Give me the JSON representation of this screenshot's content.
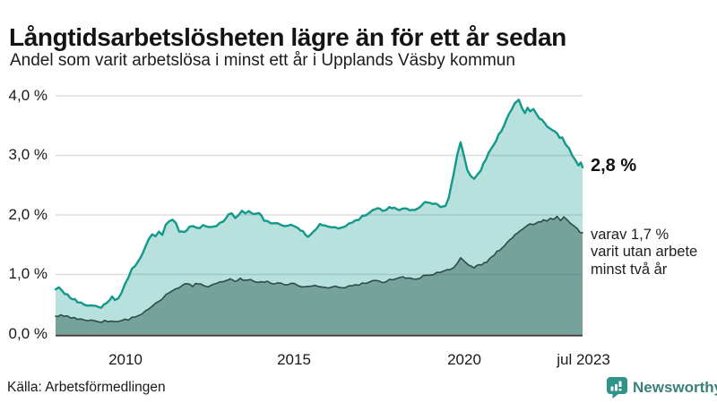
{
  "chart_data": {
    "type": "area",
    "title": "Långtidsarbetslösheten lägre än för ett år sedan",
    "subtitle": "Andel som varit arbetslösa i minst ett år i Upplands Väsby kommun",
    "source": "Källa: Arbetsförmedlingen",
    "unit": "%",
    "xlim": [
      2007.95,
      2023.5
    ],
    "ylim": [
      0,
      4
    ],
    "grid": "horizontal",
    "legend_position": "none",
    "ytick_values": [
      4,
      3,
      2,
      1,
      0
    ],
    "ytick_labels": [
      "4,0 %",
      "3,0 %",
      "2,0 %",
      "1,0 %",
      "0,0 %"
    ],
    "xtick_values": [
      2010,
      2015,
      2020,
      2023.5
    ],
    "xtick_labels": [
      "2010",
      "2015",
      "2020",
      "jul 2023"
    ],
    "end_label": "2,8 %",
    "annotation_lines": [
      "varav 1,7 %",
      "varit utan arbete",
      "minst två år"
    ],
    "series": [
      {
        "name": "Andel arbetslösa minst ett år",
        "end_value": 2.8,
        "color_line": "#13998b",
        "color_fill": "#13998b",
        "fill_opacity": 0.3,
        "line_width": 2.4,
        "points": [
          [
            2007.95,
            0.75
          ],
          [
            2008.05,
            0.77
          ],
          [
            2008.15,
            0.72
          ],
          [
            2008.3,
            0.65
          ],
          [
            2008.45,
            0.6
          ],
          [
            2008.6,
            0.55
          ],
          [
            2008.8,
            0.5
          ],
          [
            2009.0,
            0.47
          ],
          [
            2009.15,
            0.48
          ],
          [
            2009.3,
            0.46
          ],
          [
            2009.45,
            0.5
          ],
          [
            2009.55,
            0.57
          ],
          [
            2009.62,
            0.63
          ],
          [
            2009.7,
            0.57
          ],
          [
            2009.8,
            0.61
          ],
          [
            2009.9,
            0.7
          ],
          [
            2010.0,
            0.83
          ],
          [
            2010.1,
            0.97
          ],
          [
            2010.2,
            1.08
          ],
          [
            2010.3,
            1.15
          ],
          [
            2010.45,
            1.28
          ],
          [
            2010.6,
            1.45
          ],
          [
            2010.7,
            1.58
          ],
          [
            2010.8,
            1.66
          ],
          [
            2010.9,
            1.62
          ],
          [
            2011.0,
            1.72
          ],
          [
            2011.1,
            1.68
          ],
          [
            2011.2,
            1.82
          ],
          [
            2011.3,
            1.9
          ],
          [
            2011.4,
            1.93
          ],
          [
            2011.5,
            1.88
          ],
          [
            2011.6,
            1.74
          ],
          [
            2011.75,
            1.7
          ],
          [
            2011.9,
            1.8
          ],
          [
            2012.0,
            1.83
          ],
          [
            2012.1,
            1.77
          ],
          [
            2012.3,
            1.83
          ],
          [
            2012.5,
            1.8
          ],
          [
            2012.7,
            1.82
          ],
          [
            2012.9,
            1.9
          ],
          [
            2013.05,
            2.0
          ],
          [
            2013.15,
            2.03
          ],
          [
            2013.25,
            1.97
          ],
          [
            2013.45,
            2.06
          ],
          [
            2013.55,
            2.02
          ],
          [
            2013.65,
            2.07
          ],
          [
            2013.8,
            2.03
          ],
          [
            2013.95,
            2.05
          ],
          [
            2014.1,
            1.91
          ],
          [
            2014.3,
            1.87
          ],
          [
            2014.5,
            1.85
          ],
          [
            2014.7,
            1.83
          ],
          [
            2014.9,
            1.82
          ],
          [
            2015.1,
            1.8
          ],
          [
            2015.25,
            1.72
          ],
          [
            2015.4,
            1.62
          ],
          [
            2015.55,
            1.72
          ],
          [
            2015.75,
            1.83
          ],
          [
            2015.9,
            1.82
          ],
          [
            2016.1,
            1.78
          ],
          [
            2016.3,
            1.77
          ],
          [
            2016.5,
            1.82
          ],
          [
            2016.7,
            1.87
          ],
          [
            2016.9,
            1.93
          ],
          [
            2017.1,
            2.0
          ],
          [
            2017.3,
            2.06
          ],
          [
            2017.45,
            2.1
          ],
          [
            2017.6,
            2.08
          ],
          [
            2017.8,
            2.12
          ],
          [
            2017.95,
            2.14
          ],
          [
            2018.1,
            2.08
          ],
          [
            2018.25,
            2.12
          ],
          [
            2018.4,
            2.06
          ],
          [
            2018.55,
            2.1
          ],
          [
            2018.7,
            2.15
          ],
          [
            2018.85,
            2.2
          ],
          [
            2019.0,
            2.22
          ],
          [
            2019.15,
            2.18
          ],
          [
            2019.3,
            2.14
          ],
          [
            2019.45,
            2.15
          ],
          [
            2019.55,
            2.3
          ],
          [
            2019.7,
            2.7
          ],
          [
            2019.8,
            3.0
          ],
          [
            2019.9,
            3.22
          ],
          [
            2020.0,
            2.98
          ],
          [
            2020.1,
            2.75
          ],
          [
            2020.2,
            2.65
          ],
          [
            2020.3,
            2.62
          ],
          [
            2020.4,
            2.66
          ],
          [
            2020.5,
            2.76
          ],
          [
            2020.65,
            2.95
          ],
          [
            2020.8,
            3.1
          ],
          [
            2020.95,
            3.25
          ],
          [
            2021.1,
            3.42
          ],
          [
            2021.25,
            3.6
          ],
          [
            2021.4,
            3.78
          ],
          [
            2021.5,
            3.88
          ],
          [
            2021.62,
            3.95
          ],
          [
            2021.72,
            3.8
          ],
          [
            2021.8,
            3.72
          ],
          [
            2021.88,
            3.8
          ],
          [
            2021.95,
            3.74
          ],
          [
            2022.05,
            3.77
          ],
          [
            2022.15,
            3.68
          ],
          [
            2022.3,
            3.6
          ],
          [
            2022.45,
            3.48
          ],
          [
            2022.6,
            3.42
          ],
          [
            2022.75,
            3.35
          ],
          [
            2022.9,
            3.28
          ],
          [
            2023.0,
            3.18
          ],
          [
            2023.1,
            3.1
          ],
          [
            2023.2,
            3.0
          ],
          [
            2023.3,
            2.9
          ],
          [
            2023.38,
            2.85
          ],
          [
            2023.45,
            2.9
          ],
          [
            2023.5,
            2.8
          ]
        ]
      },
      {
        "name": "Varav utan arbete minst två år",
        "end_value": 1.7,
        "color_line": "#2d4c48",
        "color_fill": "#2d5b55",
        "fill_opacity": 0.47,
        "line_width": 1.6,
        "points": [
          [
            2007.95,
            0.3
          ],
          [
            2008.1,
            0.31
          ],
          [
            2008.3,
            0.29
          ],
          [
            2008.5,
            0.27
          ],
          [
            2008.7,
            0.25
          ],
          [
            2008.9,
            0.23
          ],
          [
            2009.1,
            0.22
          ],
          [
            2009.3,
            0.21
          ],
          [
            2009.5,
            0.22
          ],
          [
            2009.7,
            0.21
          ],
          [
            2009.9,
            0.23
          ],
          [
            2010.1,
            0.25
          ],
          [
            2010.3,
            0.29
          ],
          [
            2010.5,
            0.34
          ],
          [
            2010.7,
            0.41
          ],
          [
            2010.9,
            0.5
          ],
          [
            2011.1,
            0.6
          ],
          [
            2011.3,
            0.7
          ],
          [
            2011.5,
            0.77
          ],
          [
            2011.7,
            0.82
          ],
          [
            2011.85,
            0.85
          ],
          [
            2012.0,
            0.81
          ],
          [
            2012.15,
            0.86
          ],
          [
            2012.3,
            0.82
          ],
          [
            2012.45,
            0.8
          ],
          [
            2012.6,
            0.84
          ],
          [
            2012.8,
            0.87
          ],
          [
            2012.95,
            0.9
          ],
          [
            2013.1,
            0.92
          ],
          [
            2013.25,
            0.9
          ],
          [
            2013.4,
            0.93
          ],
          [
            2013.55,
            0.9
          ],
          [
            2013.7,
            0.92
          ],
          [
            2013.85,
            0.89
          ],
          [
            2014.0,
            0.87
          ],
          [
            2014.2,
            0.88
          ],
          [
            2014.4,
            0.84
          ],
          [
            2014.6,
            0.86
          ],
          [
            2014.8,
            0.83
          ],
          [
            2015.0,
            0.85
          ],
          [
            2015.2,
            0.81
          ],
          [
            2015.4,
            0.79
          ],
          [
            2015.6,
            0.82
          ],
          [
            2015.8,
            0.79
          ],
          [
            2016.0,
            0.77
          ],
          [
            2016.2,
            0.79
          ],
          [
            2016.4,
            0.78
          ],
          [
            2016.6,
            0.8
          ],
          [
            2016.8,
            0.82
          ],
          [
            2017.0,
            0.84
          ],
          [
            2017.2,
            0.87
          ],
          [
            2017.4,
            0.89
          ],
          [
            2017.6,
            0.87
          ],
          [
            2017.8,
            0.91
          ],
          [
            2018.0,
            0.94
          ],
          [
            2018.2,
            0.96
          ],
          [
            2018.35,
            0.93
          ],
          [
            2018.5,
            0.92
          ],
          [
            2018.7,
            0.95
          ],
          [
            2018.9,
            0.99
          ],
          [
            2019.1,
            1.01
          ],
          [
            2019.3,
            1.04
          ],
          [
            2019.5,
            1.08
          ],
          [
            2019.7,
            1.12
          ],
          [
            2019.8,
            1.18
          ],
          [
            2019.9,
            1.28
          ],
          [
            2020.0,
            1.22
          ],
          [
            2020.15,
            1.15
          ],
          [
            2020.3,
            1.12
          ],
          [
            2020.45,
            1.15
          ],
          [
            2020.6,
            1.19
          ],
          [
            2020.75,
            1.25
          ],
          [
            2020.9,
            1.33
          ],
          [
            2021.05,
            1.42
          ],
          [
            2021.2,
            1.5
          ],
          [
            2021.35,
            1.58
          ],
          [
            2021.5,
            1.67
          ],
          [
            2021.65,
            1.74
          ],
          [
            2021.8,
            1.8
          ],
          [
            2021.95,
            1.85
          ],
          [
            2022.05,
            1.83
          ],
          [
            2022.2,
            1.88
          ],
          [
            2022.35,
            1.92
          ],
          [
            2022.45,
            1.89
          ],
          [
            2022.55,
            1.94
          ],
          [
            2022.65,
            1.91
          ],
          [
            2022.75,
            1.96
          ],
          [
            2022.85,
            1.92
          ],
          [
            2022.95,
            1.95
          ],
          [
            2023.05,
            1.9
          ],
          [
            2023.15,
            1.86
          ],
          [
            2023.25,
            1.8
          ],
          [
            2023.35,
            1.76
          ],
          [
            2023.42,
            1.72
          ],
          [
            2023.5,
            1.7
          ]
        ]
      }
    ]
  },
  "colors": {
    "grid": "#dcdde2",
    "axis": "#3b3b3b",
    "text": "#191919",
    "accent": "#13998b"
  },
  "brand": {
    "name": "Newsworthy",
    "word_color": "#3a7f79",
    "icon": "newsworthy-chart-speech-bubble-icon",
    "icon_color": "#2f9389"
  }
}
